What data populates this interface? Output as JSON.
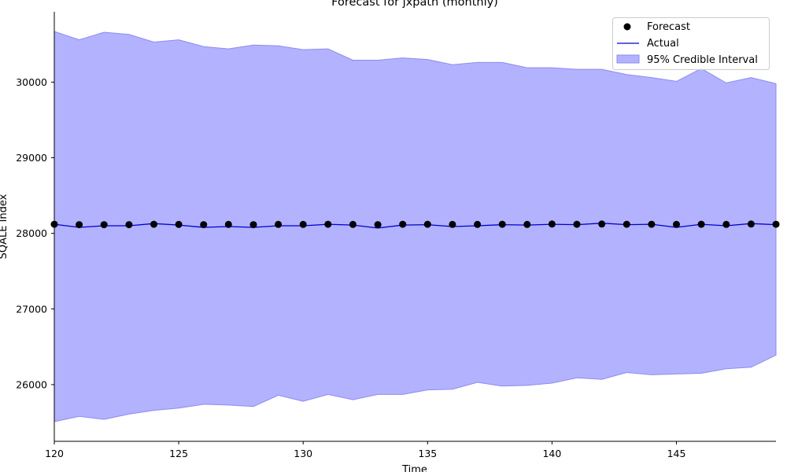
{
  "chart_data": {
    "type": "line",
    "title": "Forecast for jxpath (monthly)",
    "xlabel": "Time",
    "ylabel": "SQALE Index",
    "xlim": [
      120,
      149
    ],
    "ylim": [
      25250,
      30930
    ],
    "xticks": [
      120,
      125,
      130,
      135,
      140,
      145
    ],
    "yticks": [
      26000,
      27000,
      28000,
      29000,
      30000
    ],
    "legend_position": "top-right",
    "legend": [
      "Forecast",
      "Actual",
      "95% Credible Interval"
    ],
    "colors": {
      "forecast": "#000000",
      "actual": "#0000cc",
      "interval_fill": "#b2b2ff",
      "interval_edge": "#8c8cf0"
    },
    "x": [
      120,
      121,
      122,
      123,
      124,
      125,
      126,
      127,
      128,
      129,
      130,
      131,
      132,
      133,
      134,
      135,
      136,
      137,
      138,
      139,
      140,
      141,
      142,
      143,
      144,
      145,
      146,
      147,
      148,
      149
    ],
    "series": [
      {
        "name": "Forecast",
        "style": "scatter",
        "values": [
          28120,
          28115,
          28115,
          28115,
          28120,
          28118,
          28115,
          28118,
          28115,
          28118,
          28118,
          28120,
          28118,
          28115,
          28120,
          28120,
          28118,
          28118,
          28120,
          28118,
          28123,
          28120,
          28123,
          28120,
          28120,
          28118,
          28120,
          28118,
          28123,
          28120
        ]
      },
      {
        "name": "Actual",
        "style": "line",
        "values": [
          28120,
          28080,
          28100,
          28100,
          28130,
          28110,
          28080,
          28090,
          28080,
          28100,
          28100,
          28120,
          28110,
          28070,
          28110,
          28115,
          28090,
          28100,
          28115,
          28110,
          28120,
          28115,
          28135,
          28115,
          28120,
          28080,
          28120,
          28100,
          28130,
          28115
        ]
      },
      {
        "name": "95% Credible Interval",
        "style": "band",
        "lower": [
          25510,
          25580,
          25540,
          25610,
          25660,
          25690,
          25740,
          25730,
          25710,
          25860,
          25780,
          25870,
          25800,
          25870,
          25870,
          25930,
          25940,
          26030,
          25980,
          25990,
          26020,
          26090,
          26070,
          26160,
          26130,
          26140,
          26150,
          26210,
          26230,
          26390
        ],
        "upper": [
          30670,
          30560,
          30660,
          30630,
          30530,
          30560,
          30470,
          30440,
          30490,
          30480,
          30430,
          30440,
          30290,
          30290,
          30320,
          30300,
          30230,
          30260,
          30260,
          30190,
          30190,
          30170,
          30170,
          30100,
          30060,
          30010,
          30180,
          29990,
          30060,
          29980
        ]
      }
    ]
  }
}
